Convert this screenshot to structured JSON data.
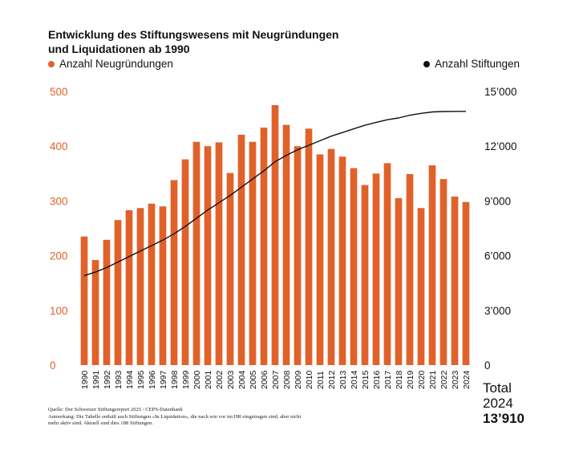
{
  "title_line1": "Entwicklung des Stiftungswesens mit Neugründungen",
  "title_line2": "und Liquidationen ab 1990",
  "legend": {
    "left": {
      "label": "Anzahl Neugründungen",
      "color": "#e0622a"
    },
    "right": {
      "label": "Anzahl Stiftungen",
      "color": "#111111"
    }
  },
  "footnote": {
    "line1": "Quelle: Der Schweizer Stiftungsreport 2025 / CEPS-Datenbank",
    "line2": "Anmerkung: Die Tabelle enthält auch Stiftungen «In Liquidation», die nach wie vor im HR eingetragen sind, aber nicht",
    "line3": "mehr aktiv sind. Aktuell sind dies 188 Stiftungen."
  },
  "total": {
    "label": "Total",
    "year": "2024",
    "value": "13’910"
  },
  "chart_data": {
    "type": "bar",
    "categories": [
      "1990",
      "1991",
      "1992",
      "1993",
      "1994",
      "1995",
      "1996",
      "1997",
      "1998",
      "1999",
      "2000",
      "2001",
      "2002",
      "2003",
      "2004",
      "2005",
      "2006",
      "2007",
      "2008",
      "2009",
      "2010",
      "2011",
      "2012",
      "2013",
      "2014",
      "2015",
      "2016",
      "2017",
      "2018",
      "2019",
      "2020",
      "2021",
      "2022",
      "2023",
      "2024"
    ],
    "series": [
      {
        "name": "Anzahl Neugründungen",
        "type": "bar",
        "axis": "left",
        "color": "#e0622a",
        "values": [
          235,
          192,
          229,
          265,
          283,
          287,
          295,
          290,
          338,
          376,
          408,
          400,
          407,
          351,
          421,
          408,
          434,
          475,
          439,
          400,
          432,
          385,
          395,
          381,
          360,
          329,
          350,
          369,
          305,
          349,
          287,
          365,
          340,
          308,
          298
        ]
      },
      {
        "name": "Anzahl Stiftungen",
        "type": "line",
        "axis": "right",
        "color": "#111111",
        "values": [
          4900,
          5100,
          5350,
          5650,
          5950,
          6250,
          6550,
          6850,
          7200,
          7600,
          8050,
          8500,
          8900,
          9300,
          9750,
          10200,
          10650,
          11150,
          11500,
          11800,
          12050,
          12300,
          12550,
          12750,
          12950,
          13150,
          13300,
          13450,
          13550,
          13700,
          13800,
          13880,
          13900,
          13910,
          13910
        ]
      }
    ],
    "ylim_left": [
      0,
      500
    ],
    "yticks_left": [
      "0",
      "100",
      "200",
      "300",
      "400",
      "500"
    ],
    "ylim_right": [
      0,
      15000
    ],
    "yticks_right": [
      "0",
      "3’000",
      "6’000",
      "9’000",
      "12’000",
      "15’000"
    ],
    "grid": false,
    "legend_position": "top"
  }
}
